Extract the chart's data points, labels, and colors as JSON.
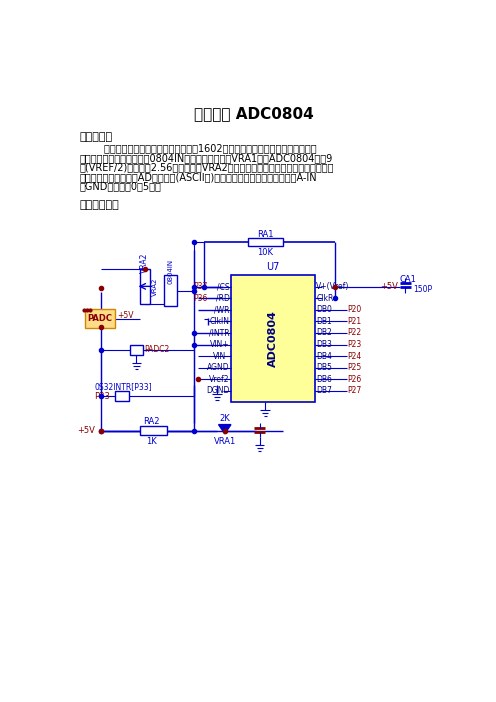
{
  "title": "模数转换 ADC0804",
  "s1_head": "一、功能：",
  "s1_lines": [
    "        程序为数字电压表程序。先接上液晶1602，输入电压可取自实验板或处接。当",
    "电压取自实验板时，应接逄0804IN跳相，调节电位器VRA1，使ADC0804的第9",
    "脚(VREF/2)的电压为2.56伏。再调节VRA2改变输入电压，液晶显示相应的输入电压",
    "値，数码管显示相应的AD转换内码(ASCII码)。当输入电压外接时，接线端为A-IN",
    "和GND，电压取0到5伏。"
  ],
  "s2_head": "二、电路图：",
  "bg_color": "#ffffff",
  "lc": "#0000cc",
  "rc": "#880000",
  "chip_bg": "#ffff99",
  "chip_label_color": "#000080"
}
